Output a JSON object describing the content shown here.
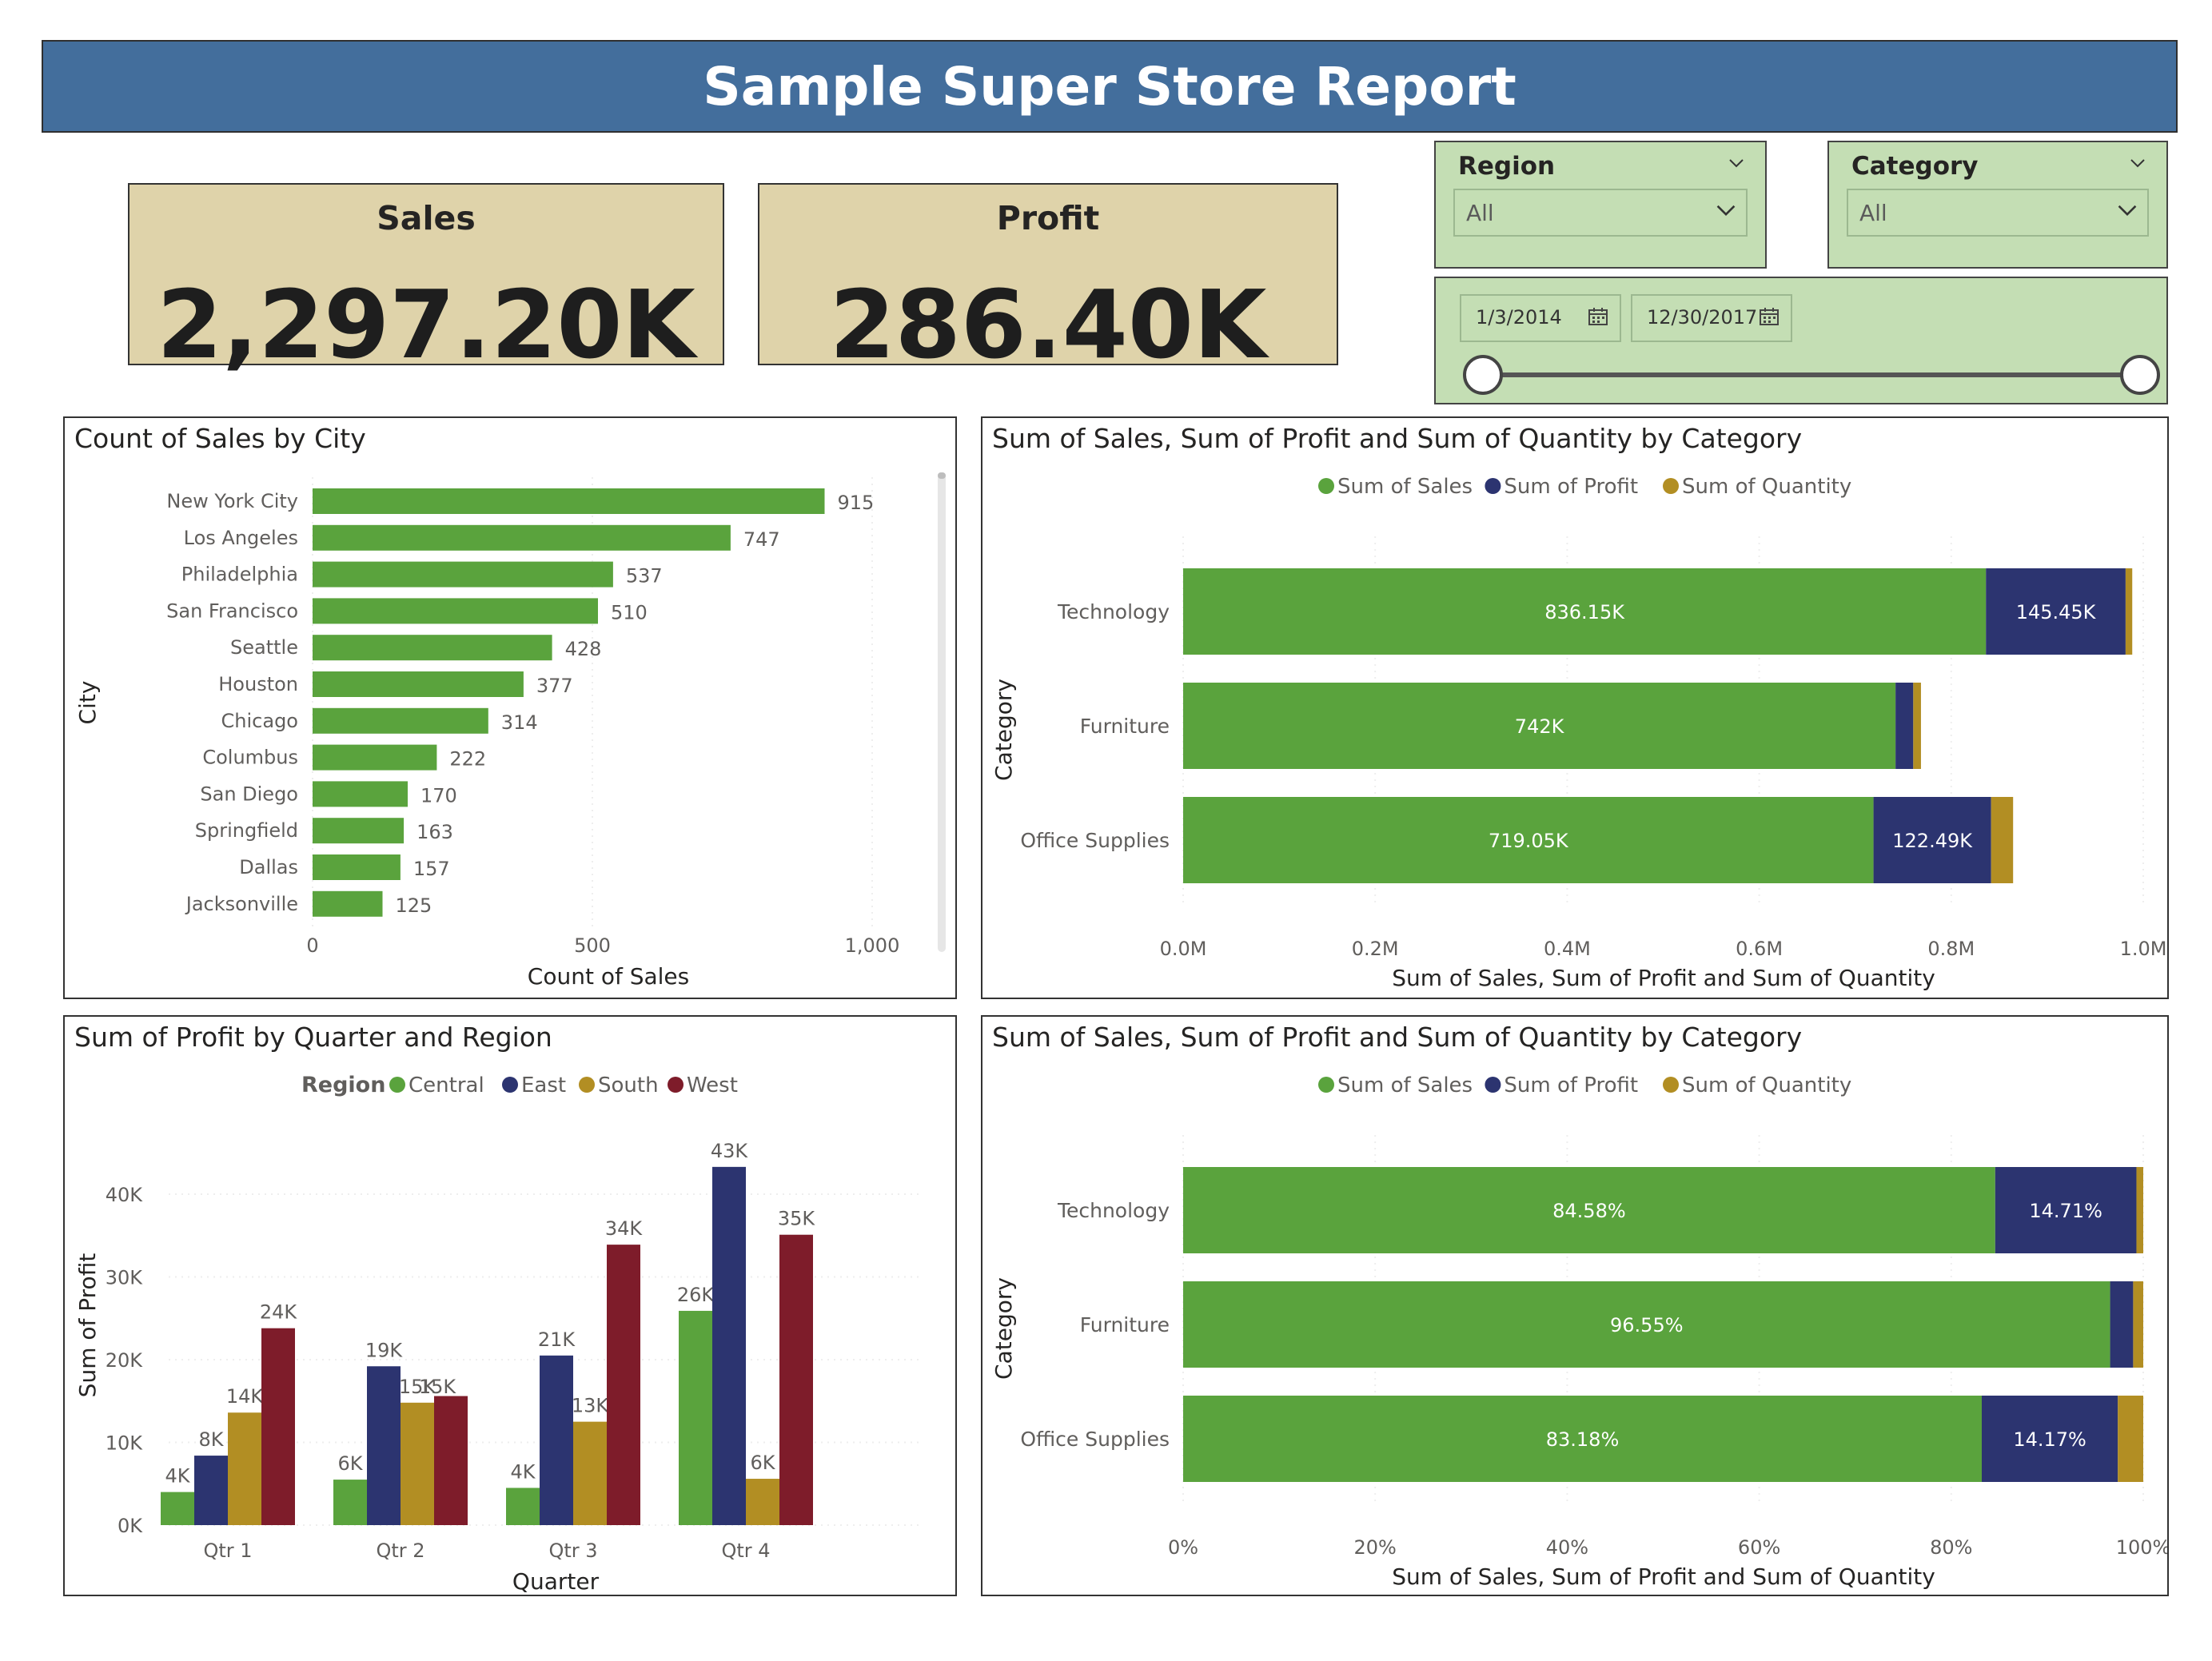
{
  "report": {
    "title": "Sample Super Store Report"
  },
  "kpis": {
    "sales": {
      "label": "Sales",
      "value": "2,297.20K"
    },
    "profit": {
      "label": "Profit",
      "value": "286.40K"
    }
  },
  "slicers": {
    "region": {
      "label": "Region",
      "value": "All"
    },
    "category": {
      "label": "Category",
      "value": "All"
    },
    "date_range": {
      "start": "1/3/2014",
      "end": "12/30/2017"
    }
  },
  "colors": {
    "green": "#5aa33d",
    "navy": "#2c3470",
    "gold": "#b28e23",
    "maroon": "#7e1c2a"
  },
  "chart_data": [
    {
      "id": "city",
      "type": "bar",
      "orientation": "horizontal",
      "title": "Count of Sales by City",
      "xlabel": "Count of Sales",
      "ylabel": "City",
      "xlim": [
        0,
        1000
      ],
      "xticks": [
        "0",
        "500",
        "1,000"
      ],
      "tick_values": [
        0,
        500,
        1000
      ],
      "categories": [
        "New York City",
        "Los Angeles",
        "Philadelphia",
        "San Francisco",
        "Seattle",
        "Houston",
        "Chicago",
        "Columbus",
        "San Diego",
        "Springfield",
        "Dallas",
        "Jacksonville"
      ],
      "values": [
        915,
        747,
        537,
        510,
        428,
        377,
        314,
        222,
        170,
        163,
        157,
        125
      ],
      "labels": [
        "915",
        "747",
        "537",
        "510",
        "428",
        "377",
        "314",
        "222",
        "170",
        "163",
        "157",
        "125"
      ]
    },
    {
      "id": "category_abs",
      "type": "bar",
      "orientation": "horizontal",
      "stacked": true,
      "title": "Sum of Sales, Sum of Profit and Sum of Quantity by Category",
      "xlabel": "Sum of Sales, Sum of Profit and Sum of Quantity",
      "ylabel": "Category",
      "xlim": [
        0,
        1000000
      ],
      "xticks": [
        "0.0M",
        "0.2M",
        "0.4M",
        "0.6M",
        "0.8M",
        "1.0M"
      ],
      "tick_values": [
        0,
        200000,
        400000,
        600000,
        800000,
        1000000
      ],
      "legend": [
        "Sum of Sales",
        "Sum of Profit",
        "Sum of Quantity"
      ],
      "categories": [
        "Technology",
        "Furniture",
        "Office Supplies"
      ],
      "series": [
        {
          "name": "Sum of Sales",
          "values": [
            836150,
            742000,
            719050
          ],
          "labels": [
            "836.15K",
            "742K",
            "719.05K"
          ]
        },
        {
          "name": "Sum of Profit",
          "values": [
            145450,
            18450,
            122490
          ],
          "labels": [
            "145.45K",
            "",
            "122.49K"
          ]
        },
        {
          "name": "Sum of Quantity",
          "values": [
            6939,
            8028,
            22906
          ],
          "labels": [
            "",
            "",
            ""
          ]
        }
      ]
    },
    {
      "id": "quarter_region",
      "type": "bar",
      "orientation": "vertical",
      "title": "Sum of Profit by Quarter and Region",
      "xlabel": "Quarter",
      "ylabel": "Sum of Profit",
      "legend_title": "Region",
      "ylim": [
        0,
        45000
      ],
      "yticks": [
        "0K",
        "10K",
        "20K",
        "30K",
        "40K"
      ],
      "tick_values": [
        0,
        10000,
        20000,
        30000,
        40000
      ],
      "categories": [
        "Qtr 1",
        "Qtr 2",
        "Qtr 3",
        "Qtr 4"
      ],
      "series": [
        {
          "name": "Central",
          "values": [
            4000,
            5500,
            4500,
            25900
          ],
          "labels": [
            "4K",
            "6K",
            "4K",
            "26K"
          ]
        },
        {
          "name": "East",
          "values": [
            8400,
            19200,
            20500,
            43300
          ],
          "labels": [
            "8K",
            "19K",
            "21K",
            "43K"
          ]
        },
        {
          "name": "South",
          "values": [
            13600,
            14800,
            12500,
            5600
          ],
          "labels": [
            "14K",
            "15K",
            "13K",
            "6K"
          ]
        },
        {
          "name": "West",
          "values": [
            23800,
            15600,
            33900,
            35100
          ],
          "labels": [
            "24K",
            "",
            "34K",
            "35K"
          ]
        }
      ],
      "extra_label": {
        "text": "15K",
        "series": 2,
        "category": 1
      }
    },
    {
      "id": "category_pct",
      "type": "bar",
      "orientation": "horizontal",
      "stacked": true,
      "percent": true,
      "title": "Sum of Sales, Sum of Profit and Sum of Quantity by Category",
      "xlabel": "Sum of Sales, Sum of Profit and Sum of Quantity",
      "ylabel": "Category",
      "xlim": [
        0,
        100
      ],
      "xticks": [
        "0%",
        "20%",
        "40%",
        "60%",
        "80%",
        "100%"
      ],
      "tick_values": [
        0,
        20,
        40,
        60,
        80,
        100
      ],
      "legend": [
        "Sum of Sales",
        "Sum of Profit",
        "Sum of Quantity"
      ],
      "categories": [
        "Technology",
        "Furniture",
        "Office Supplies"
      ],
      "series": [
        {
          "name": "Sum of Sales",
          "values": [
            84.58,
            96.55,
            83.18
          ],
          "labels": [
            "84.58%",
            "96.55%",
            "83.18%"
          ]
        },
        {
          "name": "Sum of Profit",
          "values": [
            14.71,
            2.4,
            14.17
          ],
          "labels": [
            "14.71%",
            "",
            "14.17%"
          ]
        },
        {
          "name": "Sum of Quantity",
          "values": [
            0.71,
            1.05,
            2.65
          ],
          "labels": [
            "",
            "",
            ""
          ]
        }
      ]
    }
  ]
}
